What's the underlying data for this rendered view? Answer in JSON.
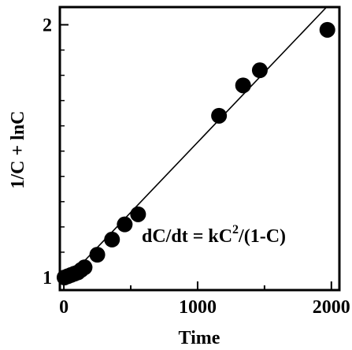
{
  "chart_data": {
    "type": "scatter",
    "title": "",
    "xlabel": "Time",
    "ylabel": "1/C + lnC",
    "xlim": [
      -30,
      2060
    ],
    "ylim": [
      0.95,
      2.07
    ],
    "x_ticks": [
      0,
      1000,
      2000
    ],
    "x_tick_labels": [
      "0",
      "1000",
      "2000"
    ],
    "y_ticks": [
      1,
      2
    ],
    "y_tick_labels": [
      "1",
      "2"
    ],
    "grid": false,
    "legend": "none",
    "marker_color": "#000000",
    "series": [
      {
        "points": [
          {
            "x": 5,
            "y": 1.0
          },
          {
            "x": 30,
            "y": 1.005
          },
          {
            "x": 55,
            "y": 1.01
          },
          {
            "x": 80,
            "y": 1.015
          },
          {
            "x": 105,
            "y": 1.02
          },
          {
            "x": 130,
            "y": 1.03
          },
          {
            "x": 155,
            "y": 1.04
          },
          {
            "x": 250,
            "y": 1.09
          },
          {
            "x": 360,
            "y": 1.15
          },
          {
            "x": 455,
            "y": 1.21
          },
          {
            "x": 555,
            "y": 1.25
          },
          {
            "x": 1160,
            "y": 1.64
          },
          {
            "x": 1340,
            "y": 1.76
          },
          {
            "x": 1465,
            "y": 1.82
          },
          {
            "x": 1970,
            "y": 1.98
          }
        ]
      }
    ],
    "fit_line": {
      "x": [
        0,
        2000
      ],
      "y": [
        0.98,
        2.09
      ]
    },
    "annotation": {
      "base": "dC/dt = kC",
      "sup": "2",
      "tail": "/(1-C)"
    }
  }
}
